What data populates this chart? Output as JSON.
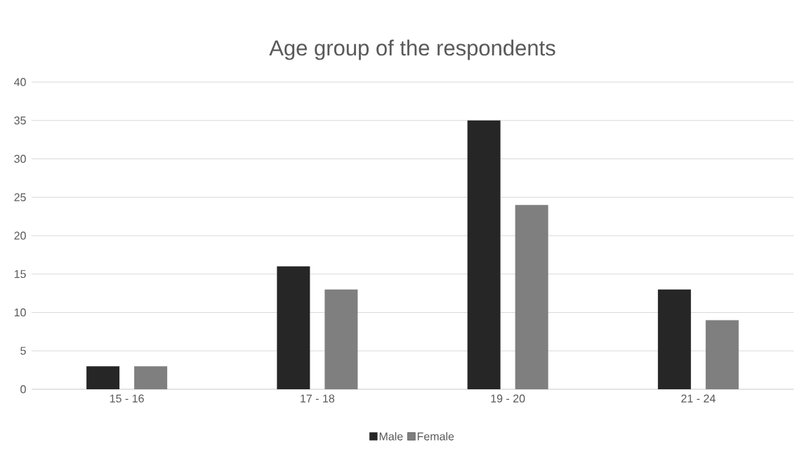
{
  "chart_data": {
    "type": "bar",
    "title": "Age group of the respondents",
    "categories": [
      "15 - 16",
      "17 - 18",
      "19 - 20",
      "21 - 24"
    ],
    "series": [
      {
        "name": "Male",
        "color": "#262626",
        "values": [
          3,
          16,
          35,
          13
        ]
      },
      {
        "name": "Female",
        "color": "#7f7f7f",
        "values": [
          3,
          13,
          24,
          9
        ]
      }
    ],
    "ylim": [
      0,
      40
    ],
    "yticks": [
      0,
      5,
      10,
      15,
      20,
      25,
      30,
      35,
      40
    ],
    "grid": "y",
    "legend": "bottom"
  }
}
